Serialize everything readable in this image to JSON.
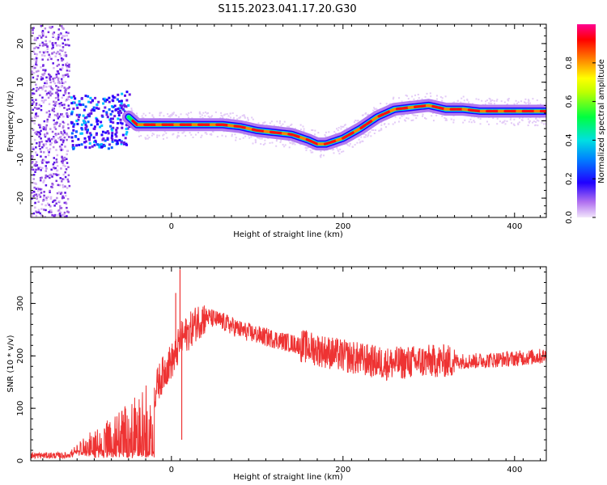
{
  "title": "S115.2023.041.17.20.G30",
  "chart_data": [
    {
      "type": "heatmap",
      "title": "S115.2023.041.17.20.G30",
      "xlabel": "Height of straight line (km)",
      "ylabel": "Frequency (Hz)",
      "xlim": [
        -164,
        437
      ],
      "ylim": [
        -25,
        25
      ],
      "x_ticks": [
        0,
        200,
        400
      ],
      "y_ticks": [
        -20,
        -10,
        0,
        10,
        20
      ],
      "colorbar": {
        "label": "Normalized spectral amplitude",
        "range": [
          0,
          1
        ],
        "ticks": [
          "0.0",
          "0.2",
          "0.4",
          "0.6",
          "0.8"
        ],
        "colormap": [
          "#e8d4f5",
          "#8a2be2",
          "#2000ff",
          "#00c8ff",
          "#00ff40",
          "#ffff00",
          "#ff8000",
          "#ff0000",
          "#ff0080"
        ]
      },
      "ridge": {
        "x": [
          -55,
          -40,
          -20,
          0,
          20,
          40,
          60,
          80,
          100,
          120,
          140,
          160,
          170,
          180,
          200,
          220,
          240,
          260,
          280,
          300,
          320,
          340,
          360,
          380,
          400,
          420,
          437
        ],
        "y": [
          2,
          -1,
          -1,
          -1,
          -1,
          -1,
          -1,
          -1.5,
          -2.5,
          -3,
          -3.5,
          -5,
          -6,
          -6,
          -4.5,
          -2,
          1,
          3,
          3.5,
          4,
          3,
          3,
          2.5,
          2.5,
          2.5,
          2.5,
          2.5
        ]
      },
      "noise_region": {
        "x_range": [
          -164,
          -120
        ],
        "y_range": [
          -25,
          25
        ]
      }
    },
    {
      "type": "line",
      "xlabel": "Height of straight line (km)",
      "ylabel": "SNR (10 * v/v)",
      "xlim": [
        -164,
        437
      ],
      "ylim": [
        0,
        370
      ],
      "x_ticks": [
        0,
        200,
        400
      ],
      "y_ticks": [
        0,
        100,
        200,
        300
      ],
      "color": "#ee3333",
      "envelope": {
        "x": [
          -164,
          -120,
          -100,
          -80,
          -60,
          -40,
          -25,
          -15,
          -5,
          5,
          10,
          20,
          30,
          40,
          60,
          80,
          100,
          150,
          200,
          250,
          300,
          350,
          400,
          437
        ],
        "y": [
          10,
          10,
          30,
          45,
          60,
          80,
          100,
          150,
          180,
          200,
          230,
          245,
          265,
          275,
          265,
          250,
          240,
          220,
          200,
          185,
          190,
          190,
          195,
          200
        ]
      },
      "peaks": [
        {
          "x": 10,
          "y": 365
        },
        {
          "x": 5,
          "y": 320
        },
        {
          "x": 12,
          "y": 40
        }
      ]
    }
  ]
}
